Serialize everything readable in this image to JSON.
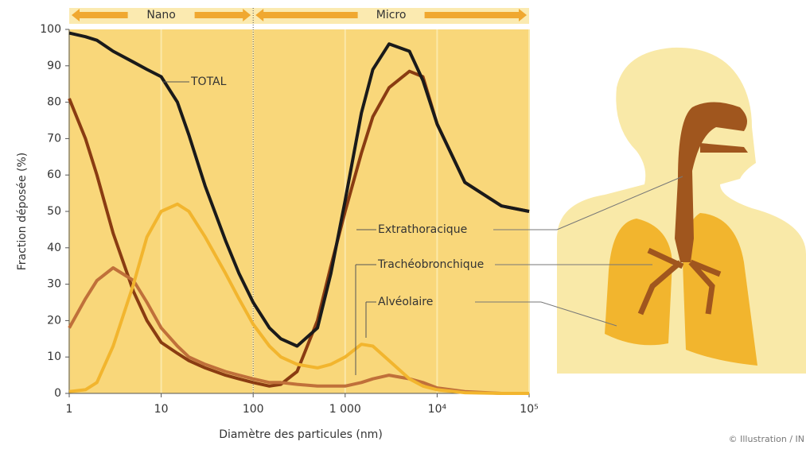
{
  "chart_data": {
    "type": "line",
    "x_label": "Diamètre des particules (nm)",
    "y_label": "Fraction déposée (%)",
    "x_scale": "log",
    "x": [
      1,
      1.5,
      2,
      3,
      5,
      7,
      10,
      15,
      20,
      30,
      50,
      70,
      100,
      150,
      200,
      300,
      500,
      700,
      1000,
      1500,
      2000,
      3000,
      5000,
      7000,
      10000,
      20000,
      50000,
      100000
    ],
    "series": [
      {
        "name": "TOTAL",
        "color": "#1a1a1a",
        "values": [
          99,
          98,
          97,
          94,
          91,
          89,
          87,
          80,
          71,
          57,
          42,
          33,
          25,
          18,
          15,
          13,
          18,
          33,
          53,
          77,
          89,
          96,
          94,
          86,
          74,
          58,
          51.5,
          50
        ]
      },
      {
        "name": "Extrathoracique",
        "color": "#8a3c12",
        "values": [
          81,
          70,
          60,
          44,
          28,
          20,
          14,
          11,
          9,
          7,
          5,
          4,
          3,
          2,
          2.5,
          6,
          20,
          35,
          50,
          66,
          76,
          84,
          88.5,
          87,
          74,
          58,
          51.5,
          50
        ]
      },
      {
        "name": "Trachéobronchique",
        "color": "#c0703a",
        "values": [
          18,
          26,
          31,
          34.5,
          31,
          25,
          18,
          13,
          10,
          8,
          6,
          5,
          4,
          3,
          3,
          2.5,
          2,
          2,
          2,
          3,
          4,
          5,
          4,
          3,
          1.5,
          0.5,
          0,
          0
        ]
      },
      {
        "name": "Alvéolaire",
        "color": "#f2b52e",
        "values": [
          0.5,
          1,
          3,
          13,
          30,
          43,
          50,
          52,
          50,
          43,
          33,
          26,
          19,
          13,
          10,
          8,
          7,
          8,
          10,
          13.5,
          13,
          9,
          4,
          2,
          1,
          0.2,
          0,
          0
        ]
      }
    ],
    "xlim": [
      1,
      100000
    ],
    "xticks": [
      1,
      10,
      100,
      {
        "value": 1000,
        "label": "1 000"
      },
      {
        "value": 10000,
        "label": "10⁴"
      },
      {
        "value": 100000,
        "label": "10⁵"
      }
    ],
    "ylim": [
      0,
      100
    ],
    "yticks": [
      0,
      10,
      20,
      30,
      40,
      50,
      60,
      70,
      80,
      90,
      100
    ],
    "regions": [
      {
        "label": "Nano",
        "from": 1,
        "to": 100
      },
      {
        "label": "Micro",
        "from": 100,
        "to": 100000
      }
    ],
    "credit": "© Illustration / IN"
  }
}
